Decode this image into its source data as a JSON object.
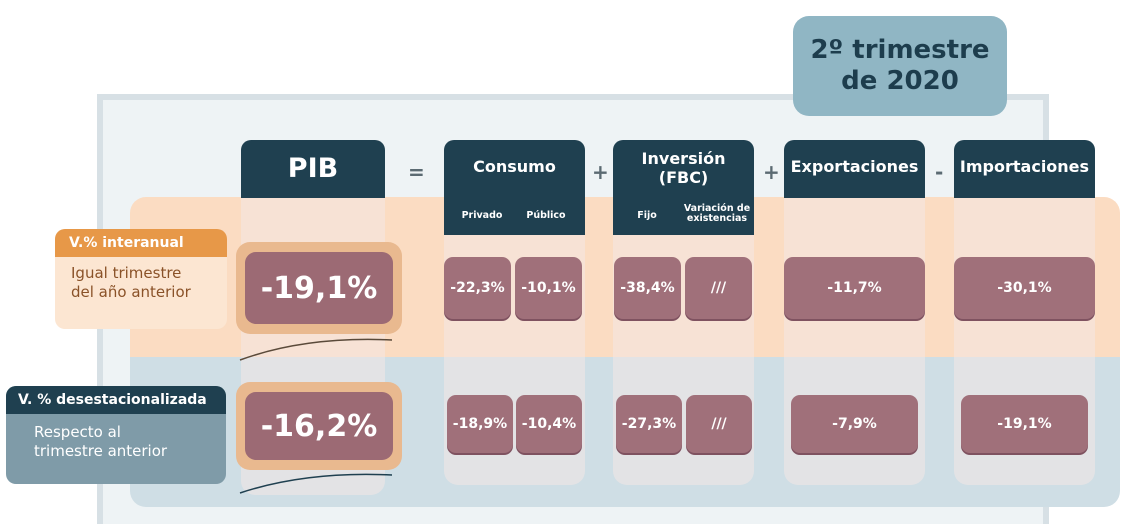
{
  "quarter": {
    "line1": "2º trimestre",
    "line2": "de 2020"
  },
  "operators": [
    "=",
    "+",
    "+",
    "-"
  ],
  "headers": {
    "pib": "PIB",
    "consumo": "Consumo",
    "consumo_sub": [
      "Privado",
      "Público"
    ],
    "inversion_l1": "Inversión",
    "inversion_l2": "(FBC)",
    "inversion_sub": [
      "Fijo",
      "Variación de existencias"
    ],
    "exportaciones": "Exportaciones",
    "importaciones": "Importaciones"
  },
  "rows": {
    "interanual": {
      "label": "V.% interanual",
      "desc_l1": "Igual trimestre",
      "desc_l2": "del año anterior",
      "pib": "-19,1%",
      "privado": "-22,3%",
      "publico": "-10,1%",
      "fijo": "-38,4%",
      "existencias": "///",
      "exportaciones": "-11,7%",
      "importaciones": "-30,1%"
    },
    "desestacionalizada": {
      "label": "V. % desestacionalizada",
      "desc_l1": "Respecto al",
      "desc_l2": "trimestre anterior",
      "pib": "-16,2%",
      "privado": "-18,9%",
      "publico": "-10,4%",
      "fijo": "-27,3%",
      "existencias": "///",
      "exportaciones": "-7,9%",
      "importaciones": "-19,1%"
    }
  },
  "colors": {
    "header": "#1f4050",
    "value_box": "#a0707a",
    "accent_orange": "#e79848",
    "band_peach": "#fbdcc2",
    "band_blue": "#cfdee5"
  }
}
